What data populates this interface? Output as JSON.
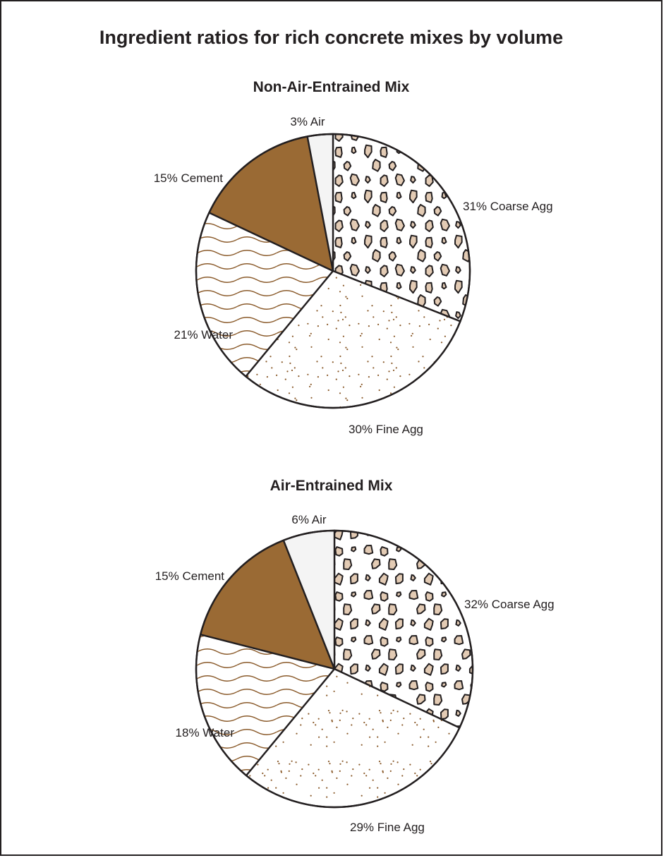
{
  "title": "Ingredient ratios for rich concrete mixes by volume",
  "colors": {
    "cement": "#9a6a34",
    "water_line": "#8a5a2a",
    "fine_dot": "#8a5a2a",
    "coarse_stone": "#e3cbb4",
    "air": "#f4f4f4",
    "outline": "#231f20"
  },
  "chart_data": [
    {
      "type": "pie",
      "title": "Non-Air-Entrained Mix",
      "slices": [
        {
          "name": "Coarse Agg",
          "value": 31,
          "label": "31% Coarse Agg",
          "pattern": "stones"
        },
        {
          "name": "Fine Agg",
          "value": 30,
          "label": "30% Fine Agg",
          "pattern": "dots"
        },
        {
          "name": "Water",
          "value": 21,
          "label": "21% Water",
          "pattern": "waves"
        },
        {
          "name": "Cement",
          "value": 15,
          "label": "15% Cement",
          "pattern": "solid"
        },
        {
          "name": "Air",
          "value": 3,
          "label": "3% Air",
          "pattern": "plain"
        }
      ]
    },
    {
      "type": "pie",
      "title": "Air-Entrained Mix",
      "slices": [
        {
          "name": "Coarse Agg",
          "value": 32,
          "label": "32% Coarse Agg",
          "pattern": "stones"
        },
        {
          "name": "Fine Agg",
          "value": 29,
          "label": "29% Fine Agg",
          "pattern": "dots"
        },
        {
          "name": "Water",
          "value": 18,
          "label": "18% Water",
          "pattern": "waves"
        },
        {
          "name": "Cement",
          "value": 15,
          "label": "15% Cement",
          "pattern": "solid"
        },
        {
          "name": "Air",
          "value": 6,
          "label": "6% Air",
          "pattern": "plain"
        }
      ]
    }
  ]
}
